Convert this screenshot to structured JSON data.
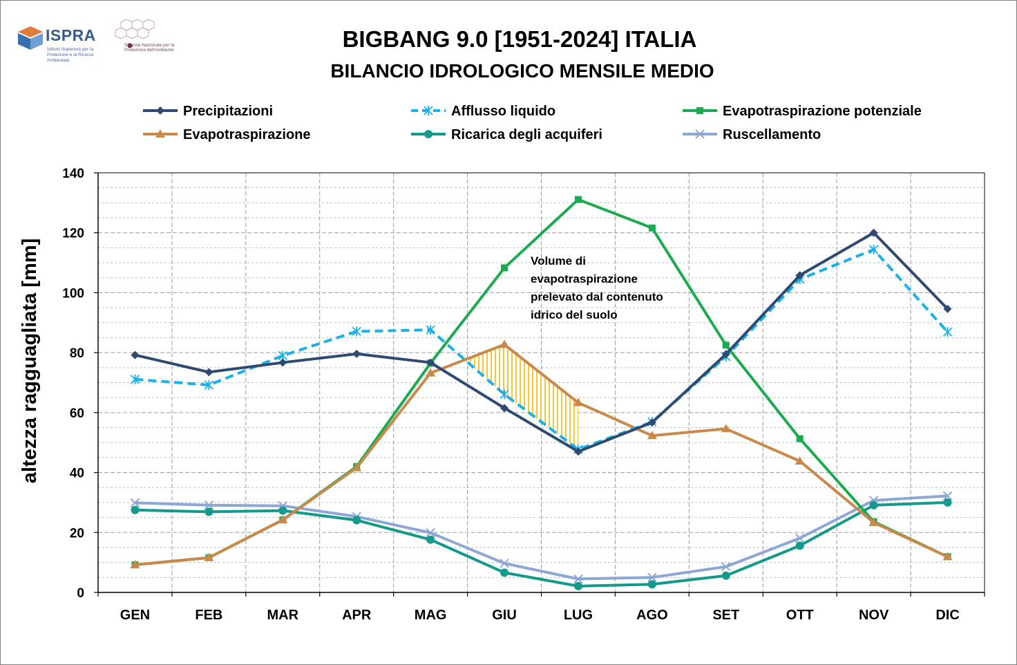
{
  "logos": {
    "ispra_name": "ISPRA",
    "ispra_subtitle": "Istituto Superiore per la Protezione e la Ricerca Ambientale",
    "snpa_subtitle": "Sistema Nazionale per la Protezione dell'Ambiente"
  },
  "colors": {
    "precipitazioni": "#2e4a72",
    "afflusso": "#1ab0e8",
    "etp": "#1aab4f",
    "et": "#c8894a",
    "ricarica": "#139a8a",
    "ruscellamento": "#8ea6d4",
    "hatch": "#f5b800"
  },
  "chart_data": {
    "type": "line",
    "title": "BIGBANG 9.0 [1951-2024] ITALIA",
    "subtitle": "BILANCIO IDROLOGICO MENSILE MEDIO",
    "xlabel": "",
    "ylabel": "altezza ragguagliata [mm]",
    "ylim": [
      0,
      140
    ],
    "yticks": [
      0,
      20,
      40,
      60,
      80,
      100,
      120,
      140
    ],
    "categories": [
      "GEN",
      "FEB",
      "MAR",
      "APR",
      "MAG",
      "GIU",
      "LUG",
      "AGO",
      "SET",
      "OTT",
      "NOV",
      "DIC"
    ],
    "legend_position": "top",
    "grid": true,
    "series": [
      {
        "key": "precipitazioni",
        "name": "Precipitazioni",
        "marker": "diamond",
        "dashed": false,
        "values": [
          79.2,
          73.5,
          76.7,
          79.6,
          76.7,
          61.5,
          47.0,
          56.7,
          79.5,
          105.8,
          120.0,
          94.6
        ]
      },
      {
        "key": "afflusso",
        "name": "Afflusso liquido",
        "marker": "asterisk",
        "dashed": true,
        "values": [
          71.1,
          69.2,
          79.0,
          87.1,
          87.6,
          66.1,
          47.7,
          56.9,
          78.7,
          104.5,
          114.4,
          86.9
        ]
      },
      {
        "key": "etp",
        "name": "Evapotraspirazione potenziale",
        "marker": "square",
        "dashed": false,
        "values": [
          9.2,
          11.6,
          24.2,
          42.0,
          76.5,
          108.3,
          131.1,
          121.6,
          82.5,
          51.3,
          23.6,
          11.9
        ]
      },
      {
        "key": "et",
        "name": "Evapotraspirazione",
        "marker": "triangle",
        "dashed": false,
        "values": [
          9.2,
          11.6,
          24.2,
          41.6,
          73.2,
          82.7,
          63.3,
          52.3,
          54.6,
          43.8,
          23.3,
          11.9
        ]
      },
      {
        "key": "ricarica",
        "name": "Ricarica degli acquiferi",
        "marker": "circle",
        "dashed": false,
        "values": [
          27.5,
          26.9,
          27.3,
          24.1,
          17.6,
          6.6,
          2.1,
          2.7,
          5.6,
          15.6,
          29.1,
          30.0
        ]
      },
      {
        "key": "ruscellamento",
        "name": "Ruscellamento",
        "marker": "x",
        "dashed": false,
        "values": [
          29.9,
          29.1,
          28.9,
          25.3,
          19.9,
          9.7,
          4.5,
          5.0,
          8.6,
          18.1,
          30.7,
          32.2
        ]
      }
    ],
    "annotation": {
      "lines": [
        "Volume di",
        "evapotraspirazione",
        "prelevato dal contenuto",
        "idrico del suolo"
      ],
      "shaded_between": [
        "Evapotraspirazione",
        "Afflusso liquido"
      ],
      "shaded_range": [
        "MAG",
        "LUG"
      ]
    }
  }
}
